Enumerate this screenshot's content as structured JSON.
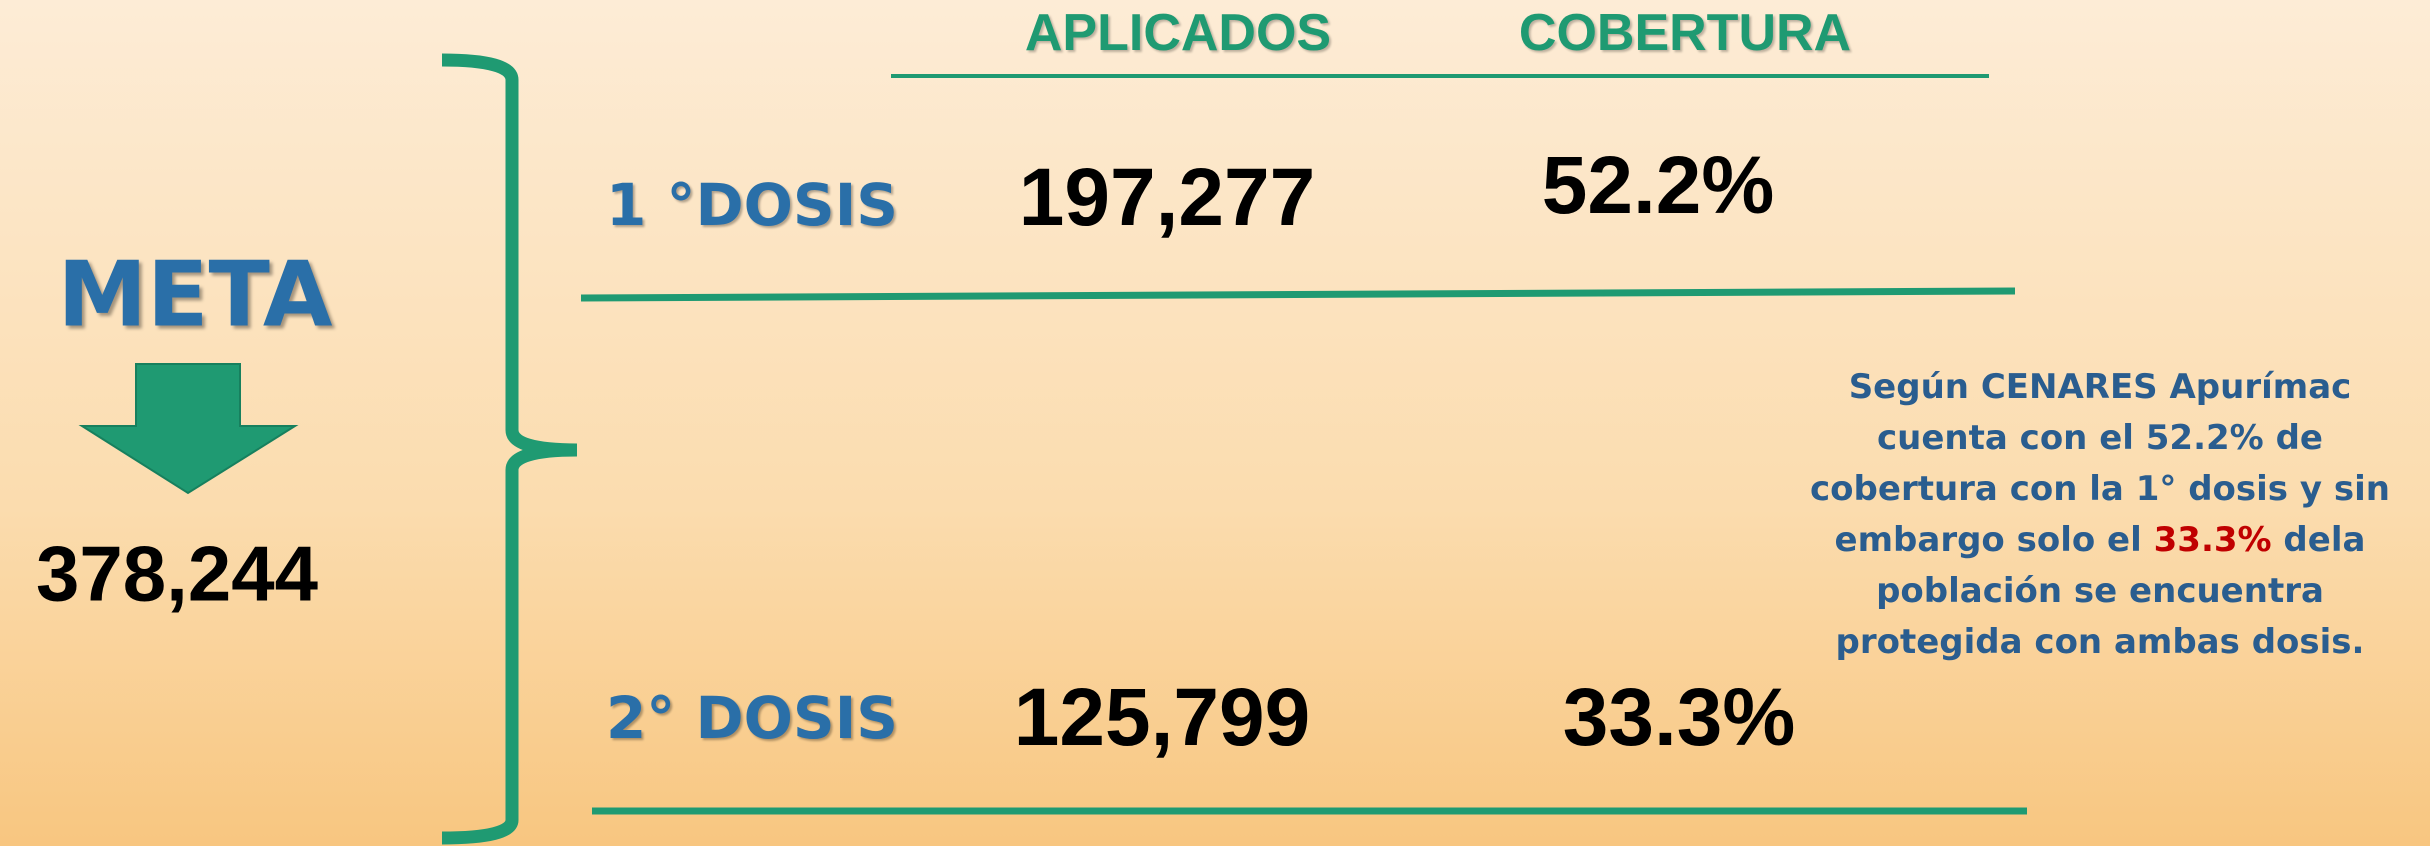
{
  "meta": {
    "label": "META",
    "value": "378,244"
  },
  "headers": [
    "APLICADOS",
    "COBERTURA"
  ],
  "rows": [
    {
      "label": "1 °DOSIS",
      "aplicados": "197,277",
      "cobertura": "52.2%"
    },
    {
      "label": "2° DOSIS",
      "aplicados": "125,799",
      "cobertura": "33.3%"
    }
  ],
  "note": {
    "before": "Según CENARES Apurímac cuenta con el 52.2% de cobertura con la 1° dosis y sin embargo solo el ",
    "highlight": "33.3%",
    "after": " dela población se encuentra protegida con ambas dosis."
  }
}
